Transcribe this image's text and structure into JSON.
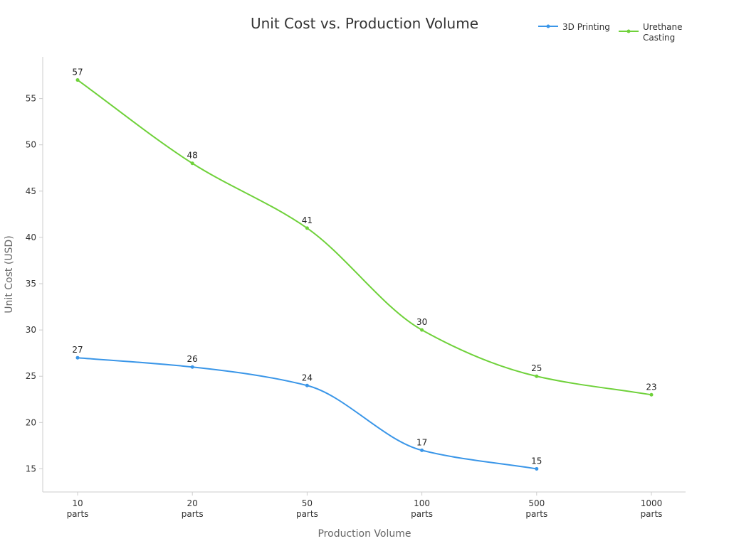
{
  "chart_data": {
    "type": "line",
    "title": "Unit Cost vs. Production Volume",
    "xlabel": "Production Volume",
    "ylabel": "Unit Cost (USD)",
    "categories": [
      "10 parts",
      "20 parts",
      "50 parts",
      "100 parts",
      "500 parts",
      "1000 parts"
    ],
    "ylim": [
      12.5,
      59.5
    ],
    "yticks": [
      15,
      20,
      25,
      30,
      35,
      40,
      45,
      50,
      55
    ],
    "grid": false,
    "legend_position": "top-right",
    "series": [
      {
        "name": "3D Printing",
        "color": "#3a96e8",
        "values": [
          27,
          26,
          24,
          17,
          15,
          null
        ],
        "labels": [
          "27",
          "26",
          "24",
          "17",
          "15",
          null
        ]
      },
      {
        "name": "Urethane Casting",
        "color": "#6fd13a",
        "values": [
          57,
          48,
          41,
          30,
          25,
          23
        ],
        "labels": [
          "57",
          "48",
          "41",
          "30",
          "25",
          "23"
        ]
      }
    ]
  }
}
